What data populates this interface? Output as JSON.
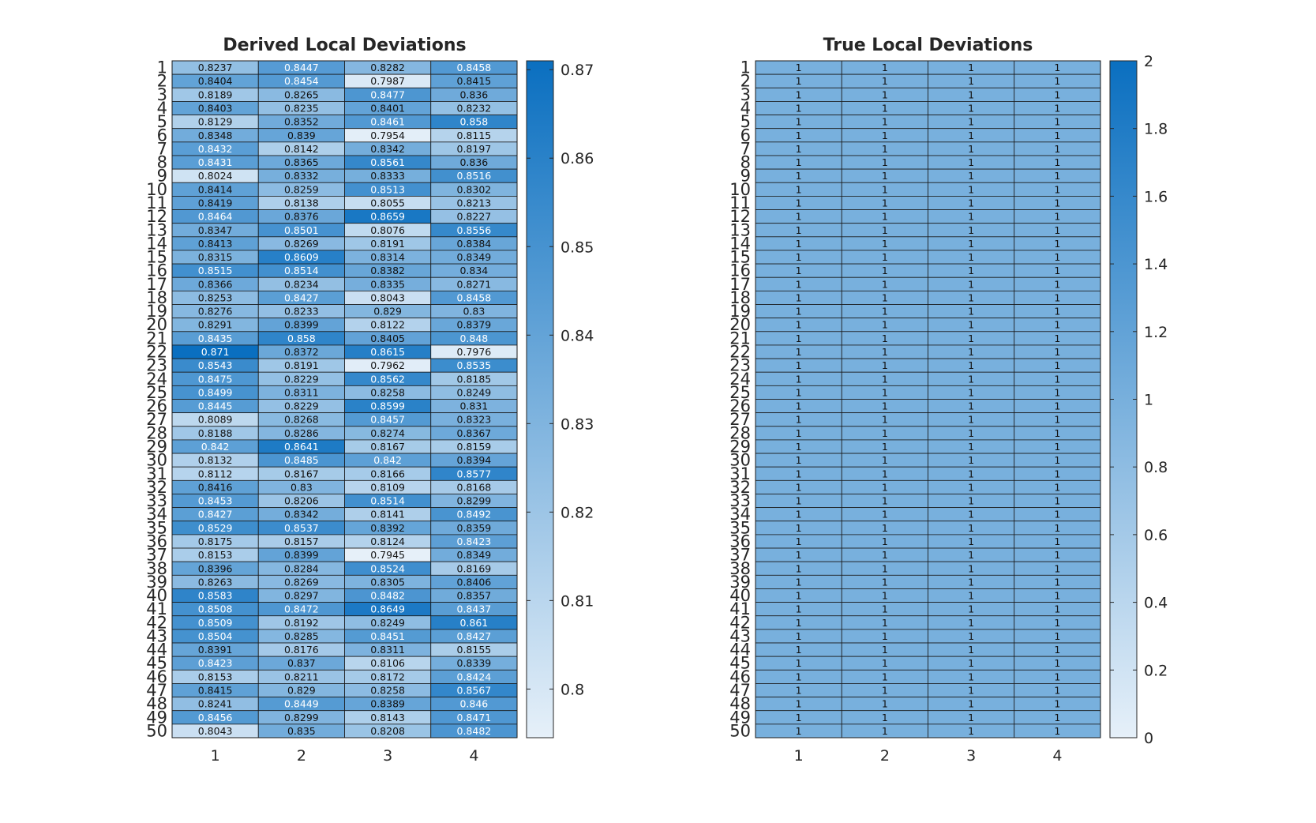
{
  "chart_data": [
    {
      "type": "heatmap",
      "title": "Derived Local Deviations",
      "x": [
        "1",
        "2",
        "3",
        "4"
      ],
      "y": [
        "1",
        "2",
        "3",
        "4",
        "5",
        "6",
        "7",
        "8",
        "9",
        "10",
        "11",
        "12",
        "13",
        "14",
        "15",
        "16",
        "17",
        "18",
        "19",
        "20",
        "21",
        "22",
        "23",
        "24",
        "25",
        "26",
        "27",
        "28",
        "29",
        "30",
        "31",
        "32",
        "33",
        "34",
        "35",
        "36",
        "37",
        "38",
        "39",
        "40",
        "41",
        "42",
        "43",
        "44",
        "45",
        "46",
        "47",
        "48",
        "49",
        "50"
      ],
      "values": [
        [
          "0.8237",
          "0.8447",
          "0.8282",
          "0.8458"
        ],
        [
          "0.8404",
          "0.8454",
          "0.7987",
          "0.8415"
        ],
        [
          "0.8189",
          "0.8265",
          "0.8477",
          "0.836"
        ],
        [
          "0.8403",
          "0.8235",
          "0.8401",
          "0.8232"
        ],
        [
          "0.8129",
          "0.8352",
          "0.8461",
          "0.858"
        ],
        [
          "0.8348",
          "0.839",
          "0.7954",
          "0.8115"
        ],
        [
          "0.8432",
          "0.8142",
          "0.8342",
          "0.8197"
        ],
        [
          "0.8431",
          "0.8365",
          "0.8561",
          "0.836"
        ],
        [
          "0.8024",
          "0.8332",
          "0.8333",
          "0.8516"
        ],
        [
          "0.8414",
          "0.8259",
          "0.8513",
          "0.8302"
        ],
        [
          "0.8419",
          "0.8138",
          "0.8055",
          "0.8213"
        ],
        [
          "0.8464",
          "0.8376",
          "0.8659",
          "0.8227"
        ],
        [
          "0.8347",
          "0.8501",
          "0.8076",
          "0.8556"
        ],
        [
          "0.8413",
          "0.8269",
          "0.8191",
          "0.8384"
        ],
        [
          "0.8315",
          "0.8609",
          "0.8314",
          "0.8349"
        ],
        [
          "0.8515",
          "0.8514",
          "0.8382",
          "0.834"
        ],
        [
          "0.8366",
          "0.8234",
          "0.8335",
          "0.8271"
        ],
        [
          "0.8253",
          "0.8427",
          "0.8043",
          "0.8458"
        ],
        [
          "0.8276",
          "0.8233",
          "0.829",
          "0.83"
        ],
        [
          "0.8291",
          "0.8399",
          "0.8122",
          "0.8379"
        ],
        [
          "0.8435",
          "0.858",
          "0.8405",
          "0.848"
        ],
        [
          "0.871",
          "0.8372",
          "0.8615",
          "0.7976"
        ],
        [
          "0.8543",
          "0.8191",
          "0.7962",
          "0.8535"
        ],
        [
          "0.8475",
          "0.8229",
          "0.8562",
          "0.8185"
        ],
        [
          "0.8499",
          "0.8311",
          "0.8258",
          "0.8249"
        ],
        [
          "0.8445",
          "0.8229",
          "0.8599",
          "0.831"
        ],
        [
          "0.8089",
          "0.8268",
          "0.8457",
          "0.8323"
        ],
        [
          "0.8188",
          "0.8286",
          "0.8274",
          "0.8367"
        ],
        [
          "0.842",
          "0.8641",
          "0.8167",
          "0.8159"
        ],
        [
          "0.8132",
          "0.8485",
          "0.842",
          "0.8394"
        ],
        [
          "0.8112",
          "0.8167",
          "0.8166",
          "0.8577"
        ],
        [
          "0.8416",
          "0.83",
          "0.8109",
          "0.8168"
        ],
        [
          "0.8453",
          "0.8206",
          "0.8514",
          "0.8299"
        ],
        [
          "0.8427",
          "0.8342",
          "0.8141",
          "0.8492"
        ],
        [
          "0.8529",
          "0.8537",
          "0.8392",
          "0.8359"
        ],
        [
          "0.8175",
          "0.8157",
          "0.8124",
          "0.8423"
        ],
        [
          "0.8153",
          "0.8399",
          "0.7945",
          "0.8349"
        ],
        [
          "0.8396",
          "0.8284",
          "0.8524",
          "0.8169"
        ],
        [
          "0.8263",
          "0.8269",
          "0.8305",
          "0.8406"
        ],
        [
          "0.8583",
          "0.8297",
          "0.8482",
          "0.8357"
        ],
        [
          "0.8508",
          "0.8472",
          "0.8649",
          "0.8437"
        ],
        [
          "0.8509",
          "0.8192",
          "0.8249",
          "0.861"
        ],
        [
          "0.8504",
          "0.8285",
          "0.8451",
          "0.8427"
        ],
        [
          "0.8391",
          "0.8176",
          "0.8311",
          "0.8155"
        ],
        [
          "0.8423",
          "0.837",
          "0.8106",
          "0.8339"
        ],
        [
          "0.8153",
          "0.8211",
          "0.8172",
          "0.8424"
        ],
        [
          "0.8415",
          "0.829",
          "0.8258",
          "0.8567"
        ],
        [
          "0.8241",
          "0.8449",
          "0.8389",
          "0.846"
        ],
        [
          "0.8456",
          "0.8299",
          "0.8143",
          "0.8471"
        ],
        [
          "0.8043",
          "0.835",
          "0.8208",
          "0.8482"
        ]
      ],
      "colorbar": {
        "range": [
          0.7945,
          0.871
        ],
        "ticks": [
          "0.8",
          "0.81",
          "0.82",
          "0.83",
          "0.84",
          "0.85",
          "0.86",
          "0.87"
        ]
      },
      "colormap": {
        "low": "#e6f0f9",
        "high": "#0a6fc0"
      },
      "grid": true
    },
    {
      "type": "heatmap",
      "title": "True Local Deviations",
      "x": [
        "1",
        "2",
        "3",
        "4"
      ],
      "y": [
        "1",
        "2",
        "3",
        "4",
        "5",
        "6",
        "7",
        "8",
        "9",
        "10",
        "11",
        "12",
        "13",
        "14",
        "15",
        "16",
        "17",
        "18",
        "19",
        "20",
        "21",
        "22",
        "23",
        "24",
        "25",
        "26",
        "27",
        "28",
        "29",
        "30",
        "31",
        "32",
        "33",
        "34",
        "35",
        "36",
        "37",
        "38",
        "39",
        "40",
        "41",
        "42",
        "43",
        "44",
        "45",
        "46",
        "47",
        "48",
        "49",
        "50"
      ],
      "values": [
        [
          "1",
          "1",
          "1",
          "1"
        ],
        [
          "1",
          "1",
          "1",
          "1"
        ],
        [
          "1",
          "1",
          "1",
          "1"
        ],
        [
          "1",
          "1",
          "1",
          "1"
        ],
        [
          "1",
          "1",
          "1",
          "1"
        ],
        [
          "1",
          "1",
          "1",
          "1"
        ],
        [
          "1",
          "1",
          "1",
          "1"
        ],
        [
          "1",
          "1",
          "1",
          "1"
        ],
        [
          "1",
          "1",
          "1",
          "1"
        ],
        [
          "1",
          "1",
          "1",
          "1"
        ],
        [
          "1",
          "1",
          "1",
          "1"
        ],
        [
          "1",
          "1",
          "1",
          "1"
        ],
        [
          "1",
          "1",
          "1",
          "1"
        ],
        [
          "1",
          "1",
          "1",
          "1"
        ],
        [
          "1",
          "1",
          "1",
          "1"
        ],
        [
          "1",
          "1",
          "1",
          "1"
        ],
        [
          "1",
          "1",
          "1",
          "1"
        ],
        [
          "1",
          "1",
          "1",
          "1"
        ],
        [
          "1",
          "1",
          "1",
          "1"
        ],
        [
          "1",
          "1",
          "1",
          "1"
        ],
        [
          "1",
          "1",
          "1",
          "1"
        ],
        [
          "1",
          "1",
          "1",
          "1"
        ],
        [
          "1",
          "1",
          "1",
          "1"
        ],
        [
          "1",
          "1",
          "1",
          "1"
        ],
        [
          "1",
          "1",
          "1",
          "1"
        ],
        [
          "1",
          "1",
          "1",
          "1"
        ],
        [
          "1",
          "1",
          "1",
          "1"
        ],
        [
          "1",
          "1",
          "1",
          "1"
        ],
        [
          "1",
          "1",
          "1",
          "1"
        ],
        [
          "1",
          "1",
          "1",
          "1"
        ],
        [
          "1",
          "1",
          "1",
          "1"
        ],
        [
          "1",
          "1",
          "1",
          "1"
        ],
        [
          "1",
          "1",
          "1",
          "1"
        ],
        [
          "1",
          "1",
          "1",
          "1"
        ],
        [
          "1",
          "1",
          "1",
          "1"
        ],
        [
          "1",
          "1",
          "1",
          "1"
        ],
        [
          "1",
          "1",
          "1",
          "1"
        ],
        [
          "1",
          "1",
          "1",
          "1"
        ],
        [
          "1",
          "1",
          "1",
          "1"
        ],
        [
          "1",
          "1",
          "1",
          "1"
        ],
        [
          "1",
          "1",
          "1",
          "1"
        ],
        [
          "1",
          "1",
          "1",
          "1"
        ],
        [
          "1",
          "1",
          "1",
          "1"
        ],
        [
          "1",
          "1",
          "1",
          "1"
        ],
        [
          "1",
          "1",
          "1",
          "1"
        ],
        [
          "1",
          "1",
          "1",
          "1"
        ],
        [
          "1",
          "1",
          "1",
          "1"
        ],
        [
          "1",
          "1",
          "1",
          "1"
        ],
        [
          "1",
          "1",
          "1",
          "1"
        ],
        [
          "1",
          "1",
          "1",
          "1"
        ]
      ],
      "colorbar": {
        "range": [
          0,
          2
        ],
        "ticks": [
          "0",
          "0.2",
          "0.4",
          "0.6",
          "0.8",
          "1",
          "1.2",
          "1.4",
          "1.6",
          "1.8",
          "2"
        ]
      },
      "colormap": {
        "low": "#e6f0f9",
        "high": "#0a6fc0"
      },
      "grid": true
    }
  ]
}
